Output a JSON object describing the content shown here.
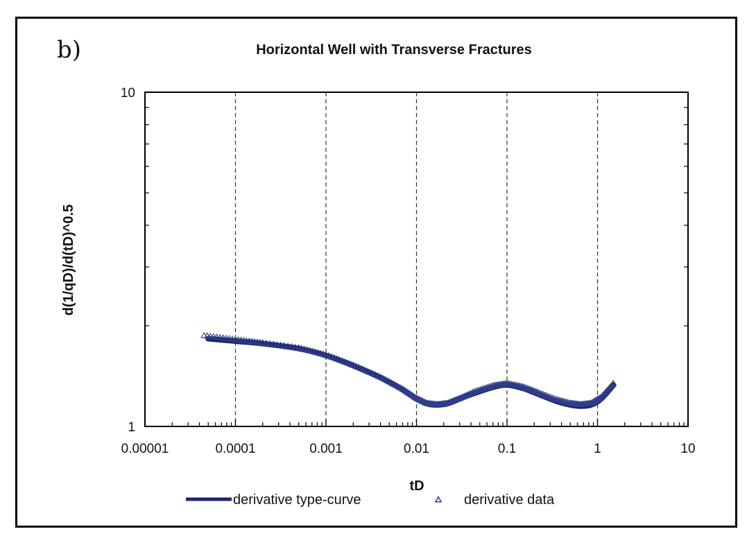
{
  "panel_label": "b)",
  "chart_data": {
    "type": "line",
    "title": "Horizontal Well with Transverse Fractures",
    "xlabel": "tD",
    "ylabel": "d(1/qD)/d(tD)^0.5",
    "x_scale": "log",
    "y_scale": "log",
    "xlim": [
      1e-05,
      10
    ],
    "ylim": [
      1,
      10
    ],
    "x_tick_labels": [
      "0.00001",
      "0.0001",
      "0.001",
      "0.01",
      "0.1",
      "1",
      "10"
    ],
    "y_tick_labels": [
      "1",
      "10"
    ],
    "grid": "vertical dashed at decades",
    "legend_position": "bottom",
    "colors": {
      "curve": "#1f2468",
      "markers": "#2f3f8c",
      "axis": "#000000",
      "grid": "#333333"
    },
    "series": [
      {
        "name": "derivative type-curve",
        "kind": "line",
        "x": [
          5e-05,
          0.0001,
          0.0002,
          0.0005,
          0.001,
          0.002,
          0.004,
          0.007,
          0.01,
          0.013,
          0.017,
          0.022,
          0.03,
          0.045,
          0.07,
          0.1,
          0.15,
          0.22,
          0.35,
          0.5,
          0.65,
          0.85,
          1.1,
          1.5
        ],
        "y": [
          1.83,
          1.8,
          1.77,
          1.71,
          1.63,
          1.52,
          1.4,
          1.29,
          1.21,
          1.17,
          1.16,
          1.17,
          1.21,
          1.26,
          1.31,
          1.33,
          1.3,
          1.25,
          1.19,
          1.16,
          1.15,
          1.16,
          1.21,
          1.33
        ]
      },
      {
        "name": "derivative data",
        "kind": "marker",
        "marker": "triangle",
        "x": [
          4.5e-05,
          0.0001,
          0.0002,
          0.0005,
          0.001,
          0.002,
          0.004,
          0.007,
          0.01,
          0.013,
          0.017,
          0.022,
          0.03,
          0.045,
          0.07,
          0.1,
          0.15,
          0.22,
          0.35,
          0.5,
          0.65,
          0.85,
          1.1,
          1.5
        ],
        "y": [
          1.85,
          1.8,
          1.76,
          1.7,
          1.62,
          1.51,
          1.39,
          1.28,
          1.2,
          1.16,
          1.15,
          1.16,
          1.2,
          1.26,
          1.31,
          1.33,
          1.3,
          1.25,
          1.19,
          1.16,
          1.15,
          1.16,
          1.21,
          1.33
        ]
      }
    ]
  }
}
